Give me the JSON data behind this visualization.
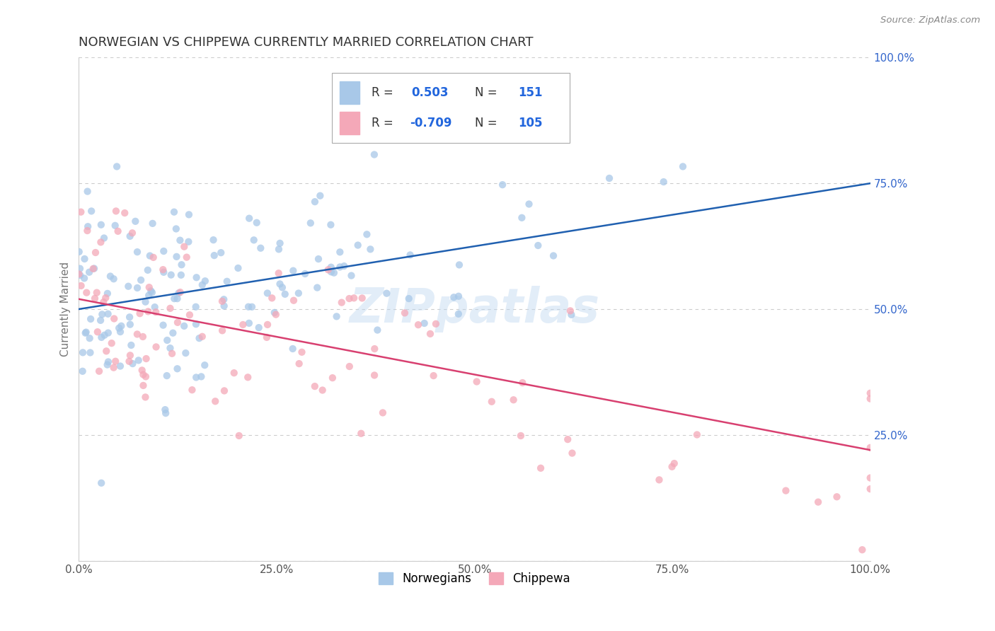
{
  "title": "NORWEGIAN VS CHIPPEWA CURRENTLY MARRIED CORRELATION CHART",
  "source": "Source: ZipAtlas.com",
  "ylabel": "Currently Married",
  "xlim": [
    0,
    100
  ],
  "ylim": [
    0,
    100
  ],
  "xticks": [
    0,
    25,
    50,
    75,
    100
  ],
  "yticks": [
    0,
    25,
    50,
    75,
    100
  ],
  "xtick_labels": [
    "0.0%",
    "25.0%",
    "50.0%",
    "75.0%",
    "100.0%"
  ],
  "ytick_labels": [
    "",
    "25.0%",
    "50.0%",
    "75.0%",
    "100.0%"
  ],
  "blue_R": 0.503,
  "blue_N": 151,
  "pink_R": -0.709,
  "pink_N": 105,
  "blue_color": "#a8c8e8",
  "pink_color": "#f4a8b8",
  "blue_line_color": "#2060b0",
  "pink_line_color": "#d84070",
  "legend_label_blue": "Norwegians",
  "legend_label_pink": "Chippewa",
  "background_color": "#ffffff",
  "grid_color": "#cccccc",
  "title_color": "#333333",
  "blue_line_y0": 50,
  "blue_line_y1": 75,
  "pink_line_y0": 52,
  "pink_line_y1": 22,
  "seed_blue": 7,
  "seed_pink": 13,
  "blue_n_points": 151,
  "pink_n_points": 105
}
